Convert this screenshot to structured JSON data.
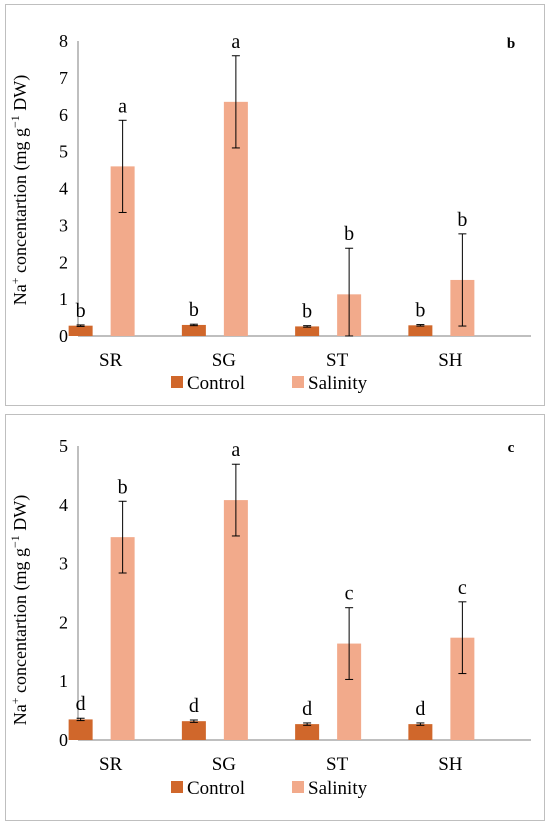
{
  "colors": {
    "control": "#D0672B",
    "salinity": "#F2AA8B",
    "axis": "#7f7f7f",
    "error": "#000000"
  },
  "chart_data": [
    {
      "type": "bar",
      "panel_label": "b",
      "ylabel_prefix": "Na",
      "ylabel_sup": "+",
      "ylabel_rest": " concentartion (mg g",
      "ylabel_sup2": "−1",
      "ylabel_end": " DW)",
      "categories": [
        "SR",
        "SG",
        "ST",
        "SH"
      ],
      "ylim": [
        0,
        8
      ],
      "yticks": [
        "0",
        "1",
        "2",
        "3",
        "4",
        "5",
        "6",
        "7",
        "8"
      ],
      "grid": false,
      "legend_position": "bottom",
      "series": [
        {
          "name": "Control",
          "values": [
            0.28,
            0.3,
            0.26,
            0.29
          ],
          "errors": [
            0.02,
            0.02,
            0.02,
            0.02
          ],
          "letters": [
            "b",
            "b",
            "b",
            "b"
          ]
        },
        {
          "name": "Salinity",
          "values": [
            4.6,
            6.35,
            1.13,
            1.52
          ],
          "errors": [
            1.25,
            1.25,
            1.25,
            1.25
          ],
          "letters": [
            "a",
            "a",
            "b",
            "b"
          ]
        }
      ]
    },
    {
      "type": "bar",
      "panel_label": "c",
      "ylabel_prefix": "Na",
      "ylabel_sup": "+",
      "ylabel_rest": " concentartion (mg g",
      "ylabel_sup2": "−1",
      "ylabel_end": "  DW)",
      "categories": [
        "SR",
        "SG",
        "ST",
        "SH"
      ],
      "ylim": [
        0,
        5
      ],
      "yticks": [
        "0",
        "1",
        "2",
        "3",
        "4",
        "5"
      ],
      "grid": false,
      "legend_position": "bottom",
      "series": [
        {
          "name": "Control",
          "values": [
            0.35,
            0.32,
            0.27,
            0.27
          ],
          "errors": [
            0.02,
            0.02,
            0.02,
            0.02
          ],
          "letters": [
            "d",
            "d",
            "d",
            "d"
          ]
        },
        {
          "name": "Salinity",
          "values": [
            3.45,
            4.08,
            1.64,
            1.74
          ],
          "errors": [
            0.61,
            0.61,
            0.61,
            0.61
          ],
          "letters": [
            "b",
            "a",
            "c",
            "c"
          ]
        }
      ]
    }
  ]
}
